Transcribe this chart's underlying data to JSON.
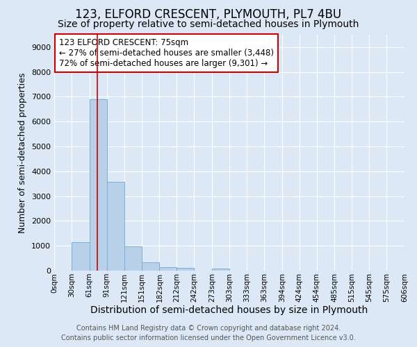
{
  "title1": "123, ELFORD CRESCENT, PLYMOUTH, PL7 4BU",
  "title2": "Size of property relative to semi-detached houses in Plymouth",
  "xlabel": "Distribution of semi-detached houses by size in Plymouth",
  "ylabel": "Number of semi-detached properties",
  "footnote1": "Contains HM Land Registry data © Crown copyright and database right 2024.",
  "footnote2": "Contains public sector information licensed under the Open Government Licence v3.0.",
  "bar_edges": [
    0,
    30,
    61,
    91,
    121,
    151,
    182,
    212,
    242,
    273,
    303,
    333,
    363,
    394,
    424,
    454,
    485,
    515,
    545,
    575,
    606
  ],
  "bar_heights": [
    0,
    1150,
    6900,
    3580,
    970,
    340,
    150,
    110,
    0,
    80,
    0,
    0,
    0,
    0,
    0,
    0,
    0,
    0,
    0,
    0
  ],
  "bar_color": "#b8d0e8",
  "bar_edge_color": "#7aaed6",
  "property_size": 75,
  "red_line_color": "#cc0000",
  "annotation_text_line1": "123 ELFORD CRESCENT: 75sqm",
  "annotation_text_line2": "← 27% of semi-detached houses are smaller (3,448)",
  "annotation_text_line3": "72% of semi-detached houses are larger (9,301) →",
  "annotation_box_color": "#cc0000",
  "ylim": [
    0,
    9500
  ],
  "tick_labels": [
    "0sqm",
    "30sqm",
    "61sqm",
    "91sqm",
    "121sqm",
    "151sqm",
    "182sqm",
    "212sqm",
    "242sqm",
    "273sqm",
    "303sqm",
    "333sqm",
    "363sqm",
    "394sqm",
    "424sqm",
    "454sqm",
    "485sqm",
    "515sqm",
    "545sqm",
    "575sqm",
    "606sqm"
  ],
  "background_color": "#dce8f5",
  "plot_bg_color": "#dce8f5",
  "grid_color": "#ffffff",
  "title1_fontsize": 12,
  "title2_fontsize": 10,
  "xlabel_fontsize": 10,
  "ylabel_fontsize": 9,
  "tick_fontsize": 7.5,
  "annotation_fontsize": 8.5,
  "footnote_fontsize": 7
}
